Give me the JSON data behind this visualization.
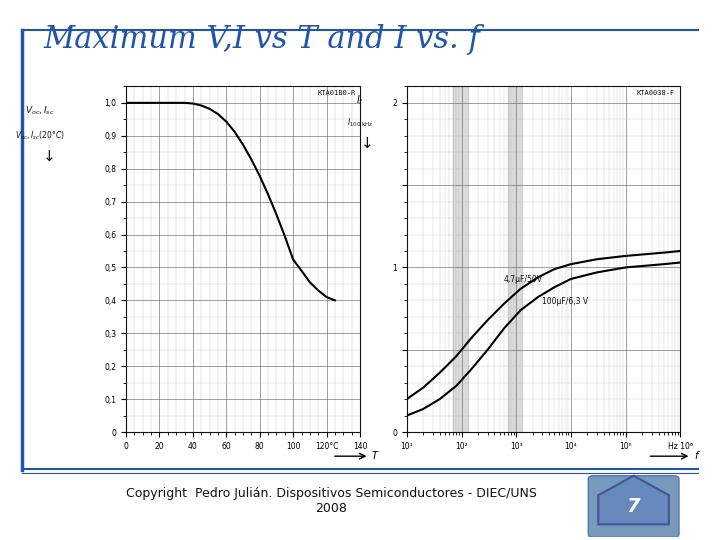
{
  "title": "Maximum V,I vs T and I vs. f",
  "title_color": "#2255AA",
  "title_fontsize": 22,
  "bg_color": "#FFFFFF",
  "slide_border_color": "#2255AA",
  "footer_text": "Copyright  Pedro Julián. Dispositivos Semiconductores - DIEC/UNS\n2008",
  "footer_fontsize": 9,
  "chart1_title": "KTA01B0-R",
  "chart1_xticks": [
    0,
    20,
    40,
    60,
    80,
    100,
    120,
    140
  ],
  "chart1_xticklabels": [
    "0",
    "20",
    "40",
    "60",
    "80",
    "100",
    "120°C",
    "140"
  ],
  "chart1_yticks": [
    0,
    0.1,
    0.2,
    0.3,
    0.4,
    0.5,
    0.6,
    0.7,
    0.8,
    0.9,
    1.0
  ],
  "chart1_yticklabels": [
    "0",
    "0,1",
    "0,2",
    "0,3",
    "0,4",
    "0,5",
    "0,6",
    "0,7",
    "0,8",
    "0,9",
    "1,0"
  ],
  "chart1_xlim": [
    0,
    140
  ],
  "chart1_ylim": [
    0,
    1.05
  ],
  "chart1_curve_x": [
    0,
    10,
    20,
    30,
    35,
    40,
    45,
    50,
    55,
    60,
    65,
    70,
    75,
    80,
    85,
    90,
    95,
    100,
    105,
    110,
    115,
    120,
    125
  ],
  "chart1_curve_y": [
    1.0,
    1.0,
    1.0,
    1.0,
    1.0,
    0.998,
    0.992,
    0.982,
    0.966,
    0.943,
    0.912,
    0.873,
    0.828,
    0.778,
    0.722,
    0.661,
    0.595,
    0.524,
    0.49,
    0.455,
    0.43,
    0.41,
    0.4
  ],
  "chart2_title": "KTA0038-F",
  "chart2_xticks": [
    10,
    100,
    1000,
    10000,
    100000,
    1000000
  ],
  "chart2_xticklabels": [
    "10¹",
    "10²",
    "10³",
    "10⁴",
    "10⁵",
    "Hz 10⁶"
  ],
  "chart2_yticks": [
    0,
    0.5,
    1.0,
    1.5,
    2.0
  ],
  "chart2_yticklabels": [
    "0",
    "",
    "1",
    "",
    "2"
  ],
  "chart2_ylim": [
    0,
    2.1
  ],
  "chart2_curve1_label": "4,7μF/50V",
  "chart2_curve1_x": [
    10,
    20,
    40,
    80,
    150,
    300,
    600,
    1200,
    2500,
    5000,
    10000,
    30000,
    100000,
    500000,
    1000000
  ],
  "chart2_curve1_y": [
    0.2,
    0.27,
    0.36,
    0.46,
    0.57,
    0.68,
    0.78,
    0.87,
    0.94,
    0.99,
    1.02,
    1.05,
    1.07,
    1.09,
    1.1
  ],
  "chart2_curve2_label": "100μF/6,3 V",
  "chart2_curve2_x": [
    10,
    20,
    40,
    80,
    150,
    300,
    600,
    1200,
    2500,
    5000,
    10000,
    30000,
    100000,
    500000,
    1000000
  ],
  "chart2_curve2_y": [
    0.1,
    0.14,
    0.2,
    0.28,
    0.38,
    0.5,
    0.63,
    0.74,
    0.82,
    0.88,
    0.93,
    0.97,
    1.0,
    1.02,
    1.03
  ],
  "grid_major_color": "#777777",
  "grid_minor_color": "#BBBBBB",
  "curve_color": "#000000",
  "curve_linewidth": 1.5,
  "logo_colors": [
    "#6688BB",
    "#8899CC",
    "#AABBDD"
  ]
}
